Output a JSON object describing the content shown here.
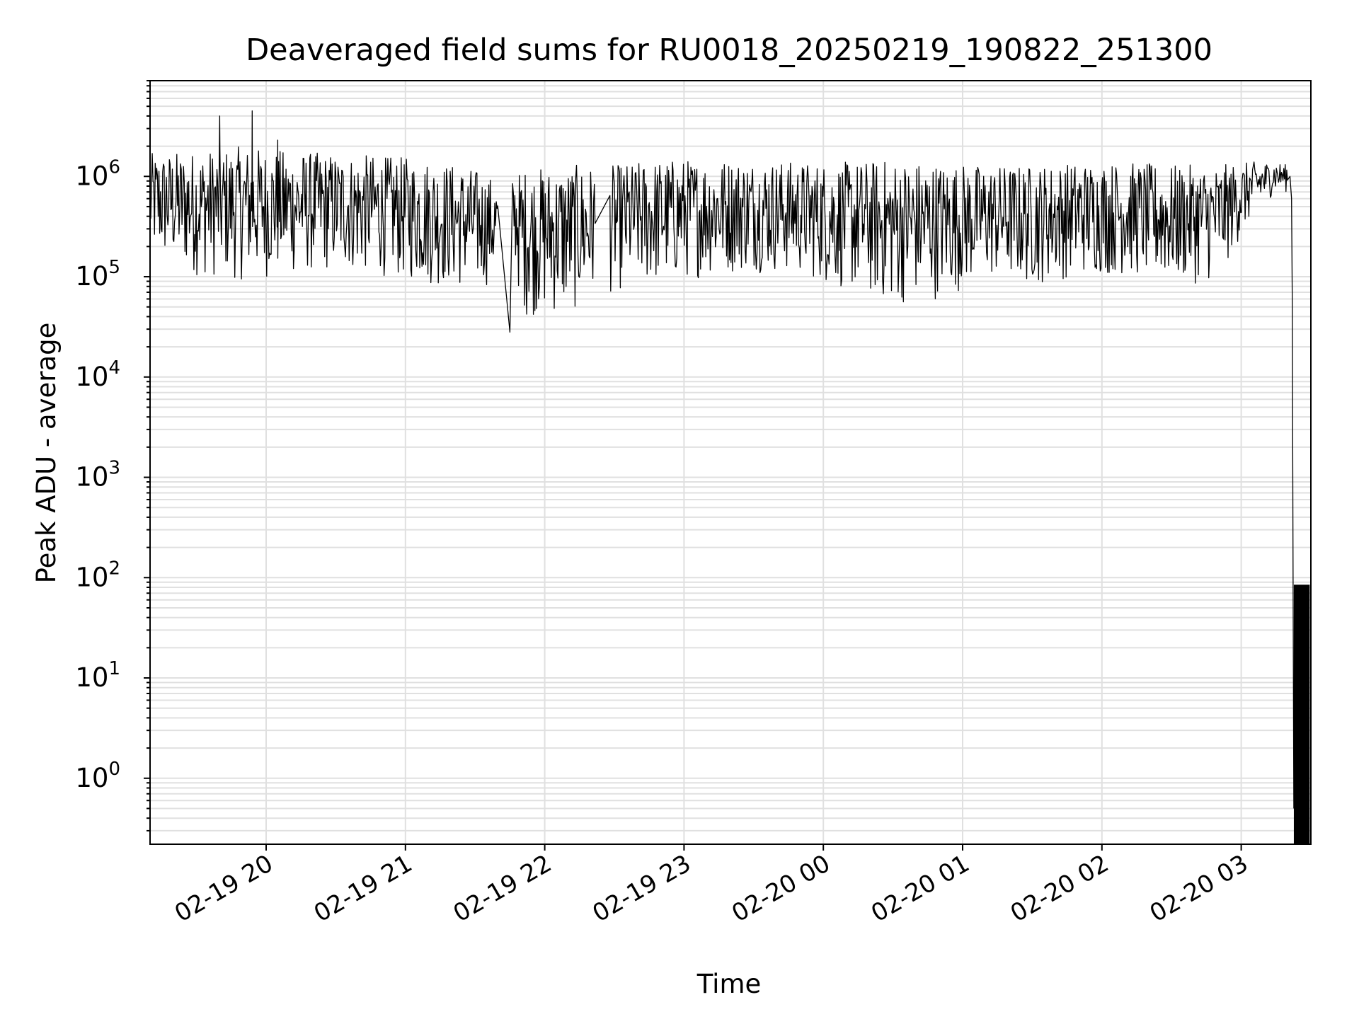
{
  "chart_data": {
    "type": "line",
    "title": "Deaveraged field sums for RU0018_20250219_190822_251300",
    "xlabel": "Time",
    "ylabel": "Peak ADU - average",
    "y_scale": "log",
    "ylim": [
      0.22,
      9000000
    ],
    "xlim": [
      "2025-02-19 19:10:00",
      "2025-02-20 03:30:00"
    ],
    "grid": true,
    "grid_minor": true,
    "line_color": "#000000",
    "grid_color": "#e0e0e0",
    "x_ticks": [
      {
        "label": "02-19 20",
        "t": "2025-02-19 20:00:00"
      },
      {
        "label": "02-19 21",
        "t": "2025-02-19 21:00:00"
      },
      {
        "label": "02-19 22",
        "t": "2025-02-19 22:00:00"
      },
      {
        "label": "02-19 23",
        "t": "2025-02-19 23:00:00"
      },
      {
        "label": "02-20 00",
        "t": "2025-02-20 00:00:00"
      },
      {
        "label": "02-20 01",
        "t": "2025-02-20 01:00:00"
      },
      {
        "label": "02-20 02",
        "t": "2025-02-20 02:00:00"
      },
      {
        "label": "02-20 03",
        "t": "2025-02-20 03:00:00"
      }
    ],
    "y_ticks": [
      {
        "base": "10",
        "exp": "0",
        "value": 1
      },
      {
        "base": "10",
        "exp": "1",
        "value": 10
      },
      {
        "base": "10",
        "exp": "2",
        "value": 100
      },
      {
        "base": "10",
        "exp": "3",
        "value": 1000
      },
      {
        "base": "10",
        "exp": "4",
        "value": 10000
      },
      {
        "base": "10",
        "exp": "5",
        "value": 100000
      },
      {
        "base": "10",
        "exp": "6",
        "value": 1000000
      }
    ],
    "series": [
      {
        "envelope": {
          "t": [
            "2025-02-19 19:10:00",
            "2025-02-19 19:30:00",
            "2025-02-19 19:50:00",
            "2025-02-19 20:10:00",
            "2025-02-19 20:30:00",
            "2025-02-19 20:50:00",
            "2025-02-19 21:10:00",
            "2025-02-19 21:30:00",
            "2025-02-19 21:40:00",
            "2025-02-19 21:44:00",
            "2025-02-19 21:50:00",
            "2025-02-19 22:10:00",
            "2025-02-19 22:30:00",
            "2025-02-19 22:50:00",
            "2025-02-19 23:10:00",
            "2025-02-19 23:30:00",
            "2025-02-19 23:50:00",
            "2025-02-20 00:10:00",
            "2025-02-20 00:30:00",
            "2025-02-20 00:50:00",
            "2025-02-20 01:10:00",
            "2025-02-20 01:30:00",
            "2025-02-20 01:50:00",
            "2025-02-20 02:10:00",
            "2025-02-20 02:30:00",
            "2025-02-20 02:50:00",
            "2025-02-20 03:05:00",
            "2025-02-20 03:15:00",
            "2025-02-20 03:20:00"
          ],
          "low": [
            150000,
            100000,
            90000,
            100000,
            110000,
            100000,
            80000,
            70000,
            90000,
            500000,
            40000,
            40000,
            70000,
            80000,
            100000,
            110000,
            100000,
            70000,
            50000,
            60000,
            90000,
            80000,
            100000,
            100000,
            80000,
            90000,
            400000,
            700000,
            700000
          ],
          "high": [
            1700000,
            1800000,
            2000000,
            1800000,
            1700000,
            1600000,
            1500000,
            1200000,
            900000,
            800000,
            1200000,
            1300000,
            1300000,
            1500000,
            1500000,
            1500000,
            1400000,
            1400000,
            1500000,
            1400000,
            1300000,
            1300000,
            1400000,
            1400000,
            1300000,
            1300000,
            1400000,
            1400000,
            1300000
          ]
        },
        "spikes": [
          {
            "t": "2025-02-19 19:40:00",
            "value": 4000000
          },
          {
            "t": "2025-02-19 19:54:00",
            "value": 4500000
          },
          {
            "t": "2025-02-19 20:05:00",
            "value": 2300000
          },
          {
            "t": "2025-02-19 21:45:00",
            "value": 28000
          }
        ],
        "tail": {
          "t": [
            "2025-02-20 03:21:00",
            "2025-02-20 03:21:40",
            "2025-02-20 03:22:00",
            "2025-02-20 03:22:20",
            "2025-02-20 03:22:40"
          ],
          "values": [
            1000000,
            600000,
            50000,
            80,
            0.5
          ]
        },
        "noise_band": {
          "t_start": "2025-02-20 03:22:40",
          "t_end": "2025-02-20 03:29:30",
          "high": 85,
          "low": 0.3
        }
      }
    ]
  }
}
